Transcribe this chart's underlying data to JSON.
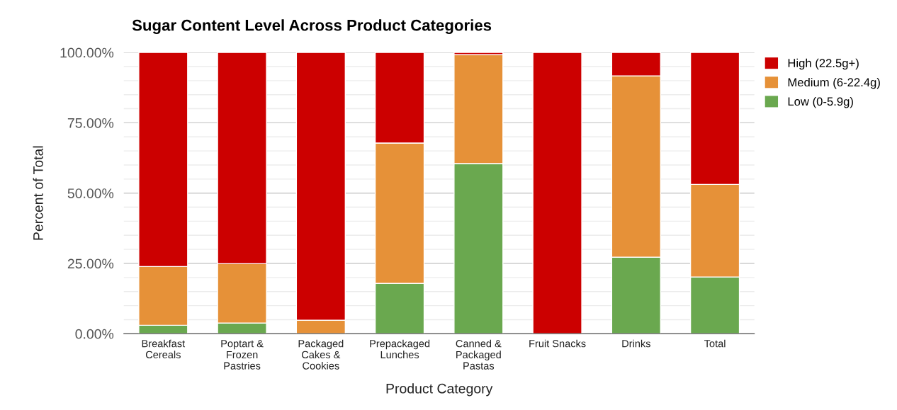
{
  "chart_data": {
    "type": "bar",
    "stacked": true,
    "title": "Sugar Content Level Across Product Categories",
    "xlabel": "Product Category",
    "ylabel": "Percent of Total",
    "categories": [
      "Breakfast\nCereals",
      "Poptart &\nFrozen\nPastries",
      "Packaged\nCakes &\nCookies",
      "Prepackaged\nLunches",
      "Canned &\nPackaged\nPastas",
      "Fruit Snacks",
      "Drinks",
      "Total"
    ],
    "series": [
      {
        "name": "Low (0-5.9g)",
        "color": "#6aa84f",
        "values": [
          3.0,
          3.8,
          0,
          17.9,
          60.5,
          0,
          27.2,
          20.2
        ]
      },
      {
        "name": "Medium (6-22.4g)",
        "color": "#e69138",
        "values": [
          20.9,
          21.1,
          4.8,
          49.9,
          38.7,
          0,
          64.5,
          32.9
        ]
      },
      {
        "name": "High (22.5g+)",
        "color": "#cc0000",
        "values": [
          76.1,
          75.1,
          95.2,
          32.2,
          0.8,
          100,
          8.3,
          46.9
        ]
      }
    ],
    "ylim": [
      0,
      100
    ],
    "yticks": [
      {
        "value": 0,
        "label": "0.00%"
      },
      {
        "value": 5,
        "label": null
      },
      {
        "value": 10,
        "label": null
      },
      {
        "value": 15,
        "label": null
      },
      {
        "value": 20,
        "label": null
      },
      {
        "value": 25,
        "label": "25.00%"
      },
      {
        "value": 30,
        "label": null
      },
      {
        "value": 35,
        "label": null
      },
      {
        "value": 40,
        "label": null
      },
      {
        "value": 45,
        "label": null
      },
      {
        "value": 50,
        "label": "50.00%"
      },
      {
        "value": 55,
        "label": null
      },
      {
        "value": 60,
        "label": null
      },
      {
        "value": 65,
        "label": null
      },
      {
        "value": 70,
        "label": null
      },
      {
        "value": 75,
        "label": "75.00%"
      },
      {
        "value": 80,
        "label": null
      },
      {
        "value": 85,
        "label": null
      },
      {
        "value": 90,
        "label": null
      },
      {
        "value": 95,
        "label": null
      },
      {
        "value": 100,
        "label": "100.00%"
      }
    ],
    "grid": "y",
    "legend": "top right"
  }
}
